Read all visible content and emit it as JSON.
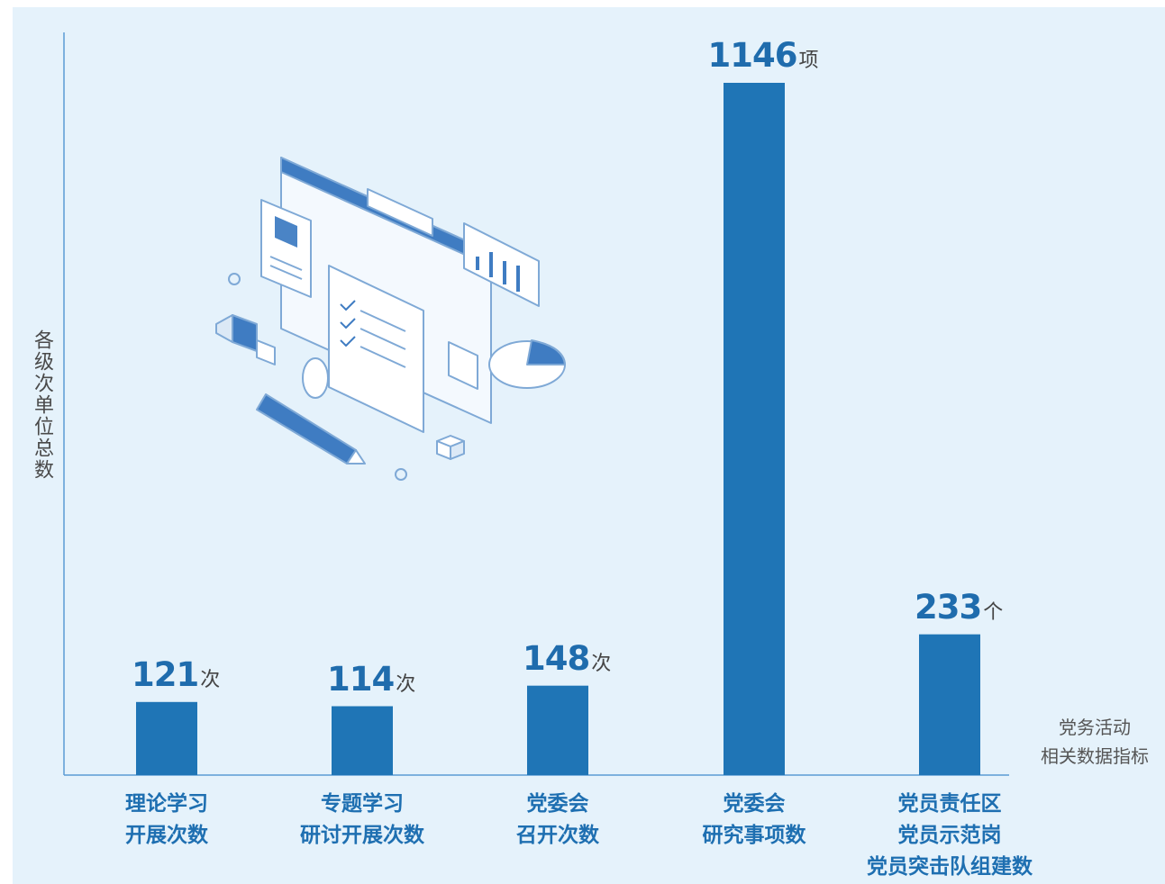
{
  "chart_data": {
    "type": "bar",
    "ylabel": "各级次单位总数",
    "xlabel": [
      "党务活动",
      "相关数据指标"
    ],
    "categories": [
      [
        "理论学习",
        "开展次数"
      ],
      [
        "专题学习",
        "研讨开展次数"
      ],
      [
        "党委会",
        "召开次数"
      ],
      [
        "党委会",
        "研究事项数"
      ],
      [
        "党员责任区",
        "党员示范岗",
        "党员突击队组建数"
      ]
    ],
    "values": [
      121,
      114,
      148,
      1146,
      233
    ],
    "units": [
      "次",
      "次",
      "次",
      "项",
      "个"
    ],
    "ylim": [
      0,
      1146
    ],
    "grid": false,
    "colors": {
      "bar": "#1f75b6",
      "axis": "#5b9bd5",
      "value_text": "#1f6cad",
      "category_text": "#1e6fb1",
      "background": "#e5f2fb"
    }
  },
  "illustration": "document-dashboard-isometric-illustration"
}
